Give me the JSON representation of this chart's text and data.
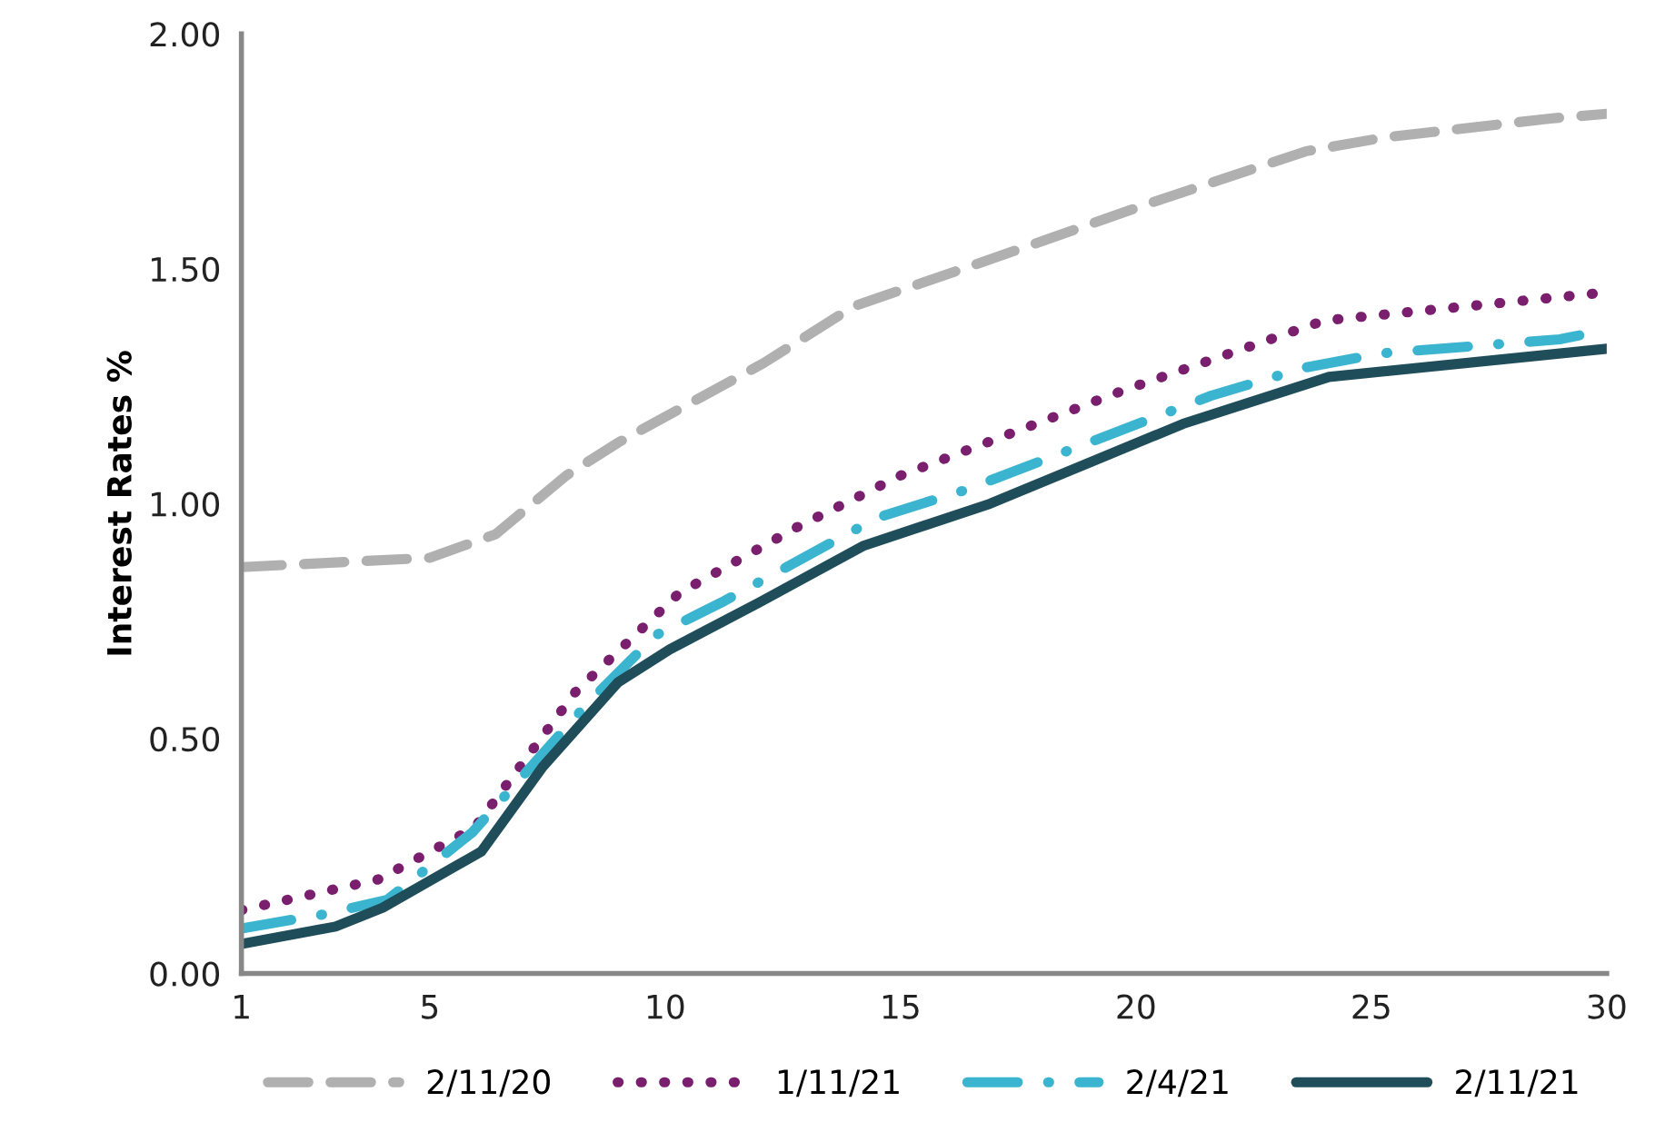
{
  "chart_data": {
    "type": "line",
    "ylabel": "Interest Rates %",
    "xlim": [
      1,
      30
    ],
    "xticks": [
      1,
      5,
      10,
      15,
      20,
      25,
      30
    ],
    "ylim": [
      0,
      2
    ],
    "yticks": [
      {
        "value": 0,
        "label": "0.00"
      },
      {
        "value": 0.5,
        "label": "0.50"
      },
      {
        "value": 1,
        "label": "1.00"
      },
      {
        "value": 1.5,
        "label": "1.50"
      },
      {
        "value": 2,
        "label": "2.00"
      }
    ],
    "grid": false,
    "legend": "bottom",
    "series": [
      {
        "name": "2/11/20",
        "color": "#b0b0b0",
        "line_style": "dashed",
        "x": [
          1,
          5,
          6.4,
          7.9,
          9,
          12.1,
          14,
          16.9,
          20.3,
          23.6,
          25.3,
          28.8,
          30
        ],
        "values": [
          0.865,
          0.885,
          0.935,
          1.06,
          1.13,
          1.3,
          1.42,
          1.52,
          1.64,
          1.75,
          1.78,
          1.82,
          1.83
        ]
      },
      {
        "name": "1/11/21",
        "color": "#7a1f6e",
        "line_style": "dotted",
        "x": [
          1,
          3.9,
          5.95,
          8.1,
          10.3,
          12.8,
          15,
          19.7,
          24,
          30
        ],
        "values": [
          0.135,
          0.2,
          0.31,
          0.6,
          0.81,
          0.95,
          1.06,
          1.24,
          1.39,
          1.45
        ]
      },
      {
        "name": "2/4/21",
        "color": "#3bb5cf",
        "line_style": "dashdot",
        "x": [
          1,
          2.7,
          4.1,
          5.9,
          8.4,
          9.8,
          11.2,
          14.5,
          16.4,
          21.6,
          23.6,
          25.2,
          29,
          30
        ],
        "values": [
          0.096,
          0.125,
          0.157,
          0.3,
          0.58,
          0.72,
          0.79,
          0.97,
          1.03,
          1.23,
          1.29,
          1.32,
          1.35,
          1.37
        ]
      },
      {
        "name": "2/11/21",
        "color": "#1f4e5a",
        "line_style": "solid",
        "x": [
          1,
          3,
          4,
          6.1,
          7.4,
          9,
          10.1,
          12,
          14.2,
          16.9,
          21,
          24.1,
          30
        ],
        "values": [
          0.063,
          0.1,
          0.14,
          0.26,
          0.44,
          0.62,
          0.69,
          0.79,
          0.91,
          1.0,
          1.17,
          1.27,
          1.33
        ]
      }
    ]
  }
}
